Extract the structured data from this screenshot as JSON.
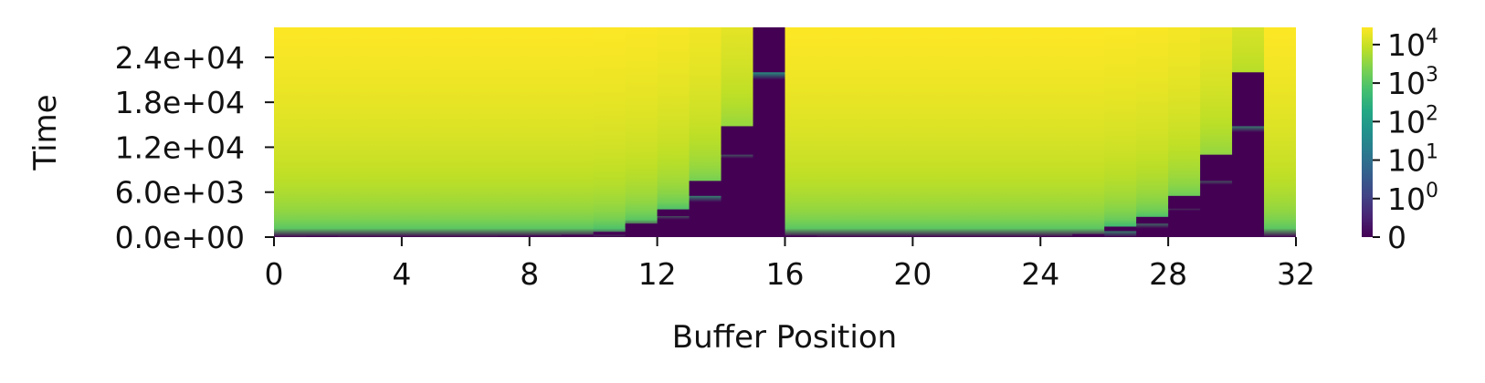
{
  "chart_data": {
    "type": "heatmap",
    "title": "",
    "xlabel": "Buffer Position",
    "ylabel": "Time",
    "xlim": [
      0,
      32
    ],
    "ylim": [
      0,
      28000
    ],
    "x_ticks": [
      0,
      4,
      8,
      12,
      16,
      20,
      24,
      28,
      32
    ],
    "x_tick_labels": [
      "0",
      "4",
      "8",
      "12",
      "16",
      "20",
      "24",
      "28",
      "32"
    ],
    "y_ticks": [
      0,
      6000,
      12000,
      18000,
      24000
    ],
    "y_tick_labels": [
      "0.0e+00",
      "6.0e+03",
      "1.2e+04",
      "1.8e+04",
      "2.4e+04"
    ],
    "colormap": "viridis",
    "color_scale": "symlog",
    "colorbar": {
      "ticks": [
        0,
        1,
        10,
        100,
        1000,
        10000
      ],
      "tick_labels": [
        {
          "base": "0",
          "exp": ""
        },
        {
          "base": "10",
          "exp": "0"
        },
        {
          "base": "10",
          "exp": "1"
        },
        {
          "base": "10",
          "exp": "2"
        },
        {
          "base": "10",
          "exp": "3"
        },
        {
          "base": "10",
          "exp": "4"
        }
      ],
      "max": 28000
    },
    "columns": [
      {
        "x": 0,
        "t0": 0,
        "dark": null
      },
      {
        "x": 1,
        "t0": 0,
        "dark": [
          0,
          150
        ]
      },
      {
        "x": 2,
        "t0": 0,
        "dark": null
      },
      {
        "x": 3,
        "t0": 0,
        "dark": null
      },
      {
        "x": 4,
        "t0": 0,
        "dark": null
      },
      {
        "x": 5,
        "t0": 0,
        "dark": null
      },
      {
        "x": 6,
        "t0": 0,
        "dark": null
      },
      {
        "x": 7,
        "t0": 0,
        "dark": [
          0,
          150
        ]
      },
      {
        "x": 8,
        "t0": 0,
        "dark": [
          0,
          200
        ]
      },
      {
        "x": 9,
        "t0": 0,
        "dark": [
          0,
          300
        ]
      },
      {
        "x": 10,
        "t0": 300,
        "dark": [
          300,
          700
        ]
      },
      {
        "x": 11,
        "t0": 1200,
        "dark": [
          1200,
          1800
        ]
      },
      {
        "x": 12,
        "t0": 2800,
        "dark": [
          2800,
          3700
        ]
      },
      {
        "x": 13,
        "t0": 5500,
        "dark": [
          5500,
          7500
        ]
      },
      {
        "x": 14,
        "t0": 11000,
        "dark": [
          11000,
          14800
        ]
      },
      {
        "x": 15,
        "t0": 22000,
        "dark": [
          22000,
          30000
        ]
      },
      {
        "x": 16,
        "t0": 0,
        "dark": [
          0,
          200
        ]
      },
      {
        "x": 17,
        "t0": 0,
        "dark": null
      },
      {
        "x": 18,
        "t0": 0,
        "dark": null
      },
      {
        "x": 19,
        "t0": 0,
        "dark": null
      },
      {
        "x": 20,
        "t0": 0,
        "dark": null
      },
      {
        "x": 21,
        "t0": 0,
        "dark": null
      },
      {
        "x": 22,
        "t0": 0,
        "dark": null
      },
      {
        "x": 23,
        "t0": 0,
        "dark": null
      },
      {
        "x": 24,
        "t0": 0,
        "dark": [
          0,
          100
        ]
      },
      {
        "x": 25,
        "t0": 0,
        "dark": [
          0,
          400
        ]
      },
      {
        "x": 26,
        "t0": 800,
        "dark": [
          800,
          1400
        ]
      },
      {
        "x": 27,
        "t0": 1800,
        "dark": [
          1800,
          2700
        ]
      },
      {
        "x": 28,
        "t0": 3800,
        "dark": [
          3800,
          5500
        ]
      },
      {
        "x": 29,
        "t0": 7500,
        "dark": [
          7500,
          11000
        ]
      },
      {
        "x": 30,
        "t0": 14800,
        "dark": [
          14800,
          22000
        ]
      },
      {
        "x": 31,
        "t0": 0,
        "dark": null
      }
    ]
  }
}
